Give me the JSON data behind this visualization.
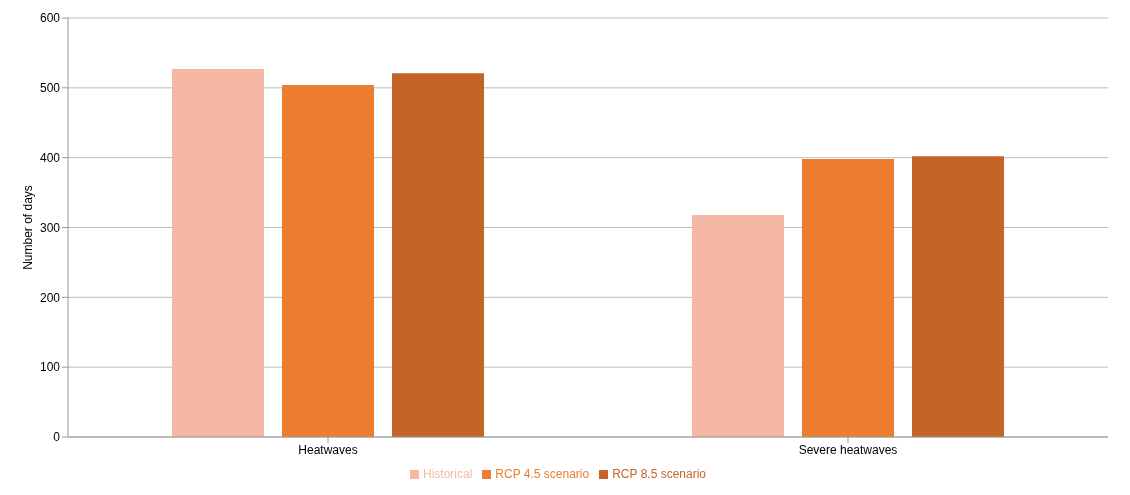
{
  "chart_data": {
    "type": "bar",
    "ylabel": "Number of days",
    "categories": [
      "Heatwaves",
      "Severe heatwaves"
    ],
    "series": [
      {
        "name": "Historical",
        "color": "#f4b8a5",
        "values": [
          527,
          318
        ]
      },
      {
        "name": "RCP 4.5 scenario",
        "color": "#ed7d31",
        "values": [
          504,
          398
        ]
      },
      {
        "name": "RCP 8.5 scenario",
        "color": "#c46527",
        "values": [
          521,
          402
        ]
      }
    ],
    "ylim": [
      0,
      600
    ],
    "yticks": [
      0,
      100,
      200,
      300,
      400,
      500,
      600
    ],
    "grid": "y",
    "legend": "bottom"
  }
}
